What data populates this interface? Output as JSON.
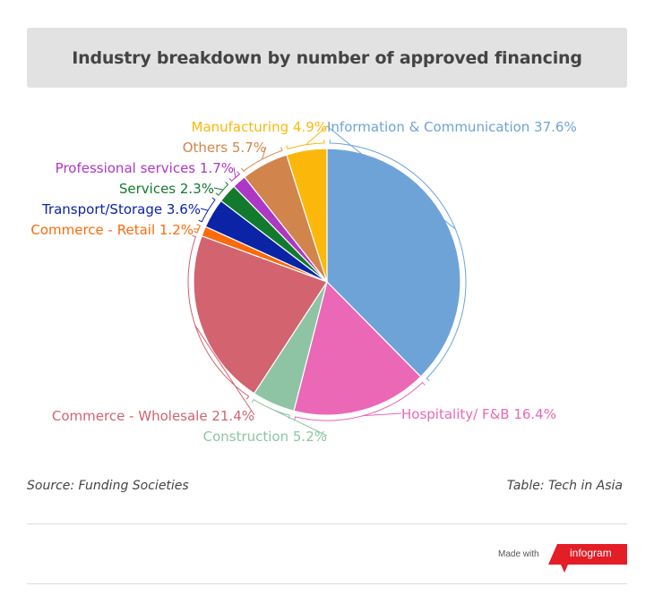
{
  "chart_data": {
    "type": "pie",
    "title": "Industry breakdown by number of approved financing",
    "slices": [
      {
        "label": "Information & Communication",
        "value": 37.6,
        "display": "Information & Communication 37.6%",
        "color": "#6ea3d8"
      },
      {
        "label": "Hospitality/ F&B",
        "value": 16.4,
        "display": "Hospitality/ F&B 16.4%",
        "color": "#ea68b5"
      },
      {
        "label": "Construction",
        "value": 5.2,
        "display": "Construction 5.2%",
        "color": "#8ec4a4"
      },
      {
        "label": "Commerce - Wholesale",
        "value": 21.4,
        "display": "Commerce - Wholesale 21.4%",
        "color": "#d2636f"
      },
      {
        "label": "Commerce - Retail",
        "value": 1.2,
        "display": "Commerce - Retail 1.2%",
        "color": "#fd6a0a"
      },
      {
        "label": "Transport/Storage",
        "value": 3.6,
        "display": "Transport/Storage 3.6%",
        "color": "#0b24a6"
      },
      {
        "label": "Services",
        "value": 2.3,
        "display": "Services 2.3%",
        "color": "#127a2d"
      },
      {
        "label": "Professional services",
        "value": 1.7,
        "display": "Professional services 1.7%",
        "color": "#ad38c5"
      },
      {
        "label": "Others",
        "value": 5.7,
        "display": "Others 5.7%",
        "color": "#d1844b"
      },
      {
        "label": "Manufacturing",
        "value": 4.9,
        "display": "Manufacturing 4.9%",
        "color": "#fbb80b"
      }
    ]
  },
  "footer": {
    "source": "Source: Funding Societies",
    "credit": "Table: Tech in Asia",
    "made_with": "Made with",
    "brand": "infogram"
  },
  "colors": {
    "title_background": "#e2e2e2",
    "brand_red": "#e31e26"
  }
}
